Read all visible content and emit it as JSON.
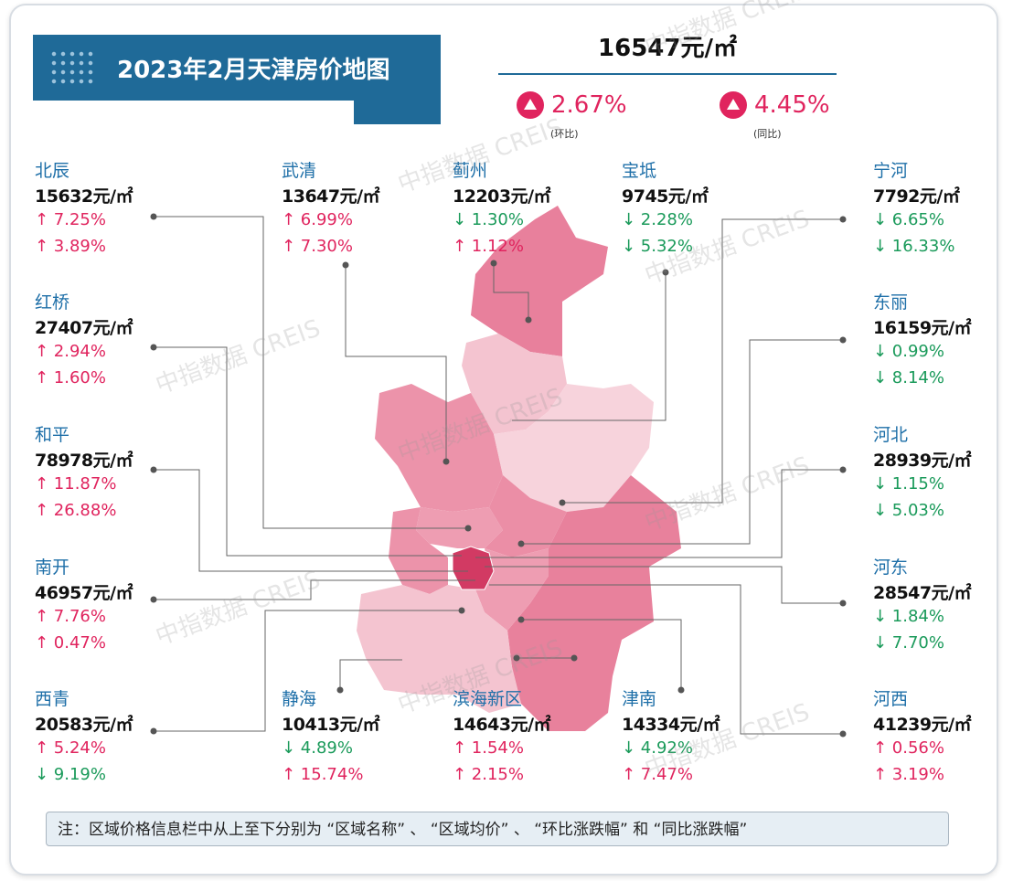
{
  "title": "2023年2月天津房价地图",
  "overall": {
    "price": "16547元/㎡",
    "mom": "2.67%",
    "mom_label": "(环比)",
    "yoy": "4.45%",
    "yoy_label": "(同比)"
  },
  "colors": {
    "up": "#e0245e",
    "down": "#1a9a5a",
    "name": "#1e6fa8",
    "banner": "#1f6a98",
    "map_pink": "#e8809c"
  },
  "districts": [
    {
      "name": "北辰",
      "price": "15632元/㎡",
      "mom": "↑ 7.25%",
      "mom_dir": "up",
      "yoy": "↑ 3.89%",
      "yoy_dir": "up"
    },
    {
      "name": "武清",
      "price": "13647元/㎡",
      "mom": "↑ 6.99%",
      "mom_dir": "up",
      "yoy": "↑ 7.30%",
      "yoy_dir": "up"
    },
    {
      "name": "蓟州",
      "price": "12203元/㎡",
      "mom": "↓ 1.30%",
      "mom_dir": "down",
      "yoy": "↑ 1.12%",
      "yoy_dir": "up"
    },
    {
      "name": "宝坻",
      "price": "9745元/㎡",
      "mom": "↓ 2.28%",
      "mom_dir": "down",
      "yoy": "↓ 5.32%",
      "yoy_dir": "down"
    },
    {
      "name": "宁河",
      "price": "7792元/㎡",
      "mom": "↓ 6.65%",
      "mom_dir": "down",
      "yoy": "↓ 16.33%",
      "yoy_dir": "down"
    },
    {
      "name": "红桥",
      "price": "27407元/㎡",
      "mom": "↑ 2.94%",
      "mom_dir": "up",
      "yoy": "↑ 1.60%",
      "yoy_dir": "up"
    },
    {
      "name": "东丽",
      "price": "16159元/㎡",
      "mom": "↓ 0.99%",
      "mom_dir": "down",
      "yoy": "↓ 8.14%",
      "yoy_dir": "down"
    },
    {
      "name": "和平",
      "price": "78978元/㎡",
      "mom": "↑ 11.87%",
      "mom_dir": "up",
      "yoy": "↑ 26.88%",
      "yoy_dir": "up"
    },
    {
      "name": "河北",
      "price": "28939元/㎡",
      "mom": "↓ 1.15%",
      "mom_dir": "down",
      "yoy": "↓ 5.03%",
      "yoy_dir": "down"
    },
    {
      "name": "南开",
      "price": "46957元/㎡",
      "mom": "↑ 7.76%",
      "mom_dir": "up",
      "yoy": "↑ 0.47%",
      "yoy_dir": "up"
    },
    {
      "name": "河东",
      "price": "28547元/㎡",
      "mom": "↓ 1.84%",
      "mom_dir": "down",
      "yoy": "↓ 7.70%",
      "yoy_dir": "down"
    },
    {
      "name": "西青",
      "price": "20583元/㎡",
      "mom": "↑ 5.24%",
      "mom_dir": "up",
      "yoy": "↓ 9.19%",
      "yoy_dir": "down"
    },
    {
      "name": "静海",
      "price": "10413元/㎡",
      "mom": "↓ 4.89%",
      "mom_dir": "down",
      "yoy": "↑ 15.74%",
      "yoy_dir": "up"
    },
    {
      "name": "滨海新区",
      "price": "14643元/㎡",
      "mom": "↑ 1.54%",
      "mom_dir": "up",
      "yoy": "↑ 2.15%",
      "yoy_dir": "up"
    },
    {
      "name": "津南",
      "price": "14334元/㎡",
      "mom": "↓ 4.92%",
      "mom_dir": "down",
      "yoy": "↑ 7.47%",
      "yoy_dir": "up"
    },
    {
      "name": "河西",
      "price": "41239元/㎡",
      "mom": "↑ 0.56%",
      "mom_dir": "up",
      "yoy": "↑ 3.19%",
      "yoy_dir": "up"
    }
  ],
  "note": "注：区域价格信息栏中从上至下分别为 “区域名称” 、 “区域均价” 、 “环比涨跌幅” 和 “同比涨跌幅”",
  "watermark": "中指数据 CREIS"
}
